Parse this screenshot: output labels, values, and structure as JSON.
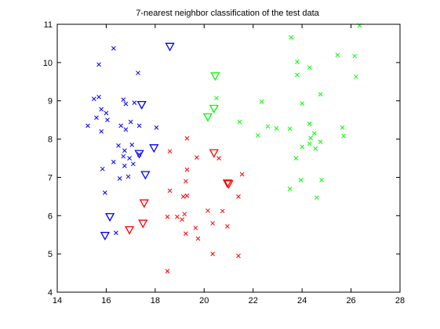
{
  "chart_data": {
    "type": "scatter",
    "title": "7-nearest neighbor classification of the test data",
    "xlabel": "",
    "ylabel": "",
    "xlim": [
      14,
      28
    ],
    "ylim": [
      4,
      11
    ],
    "x_ticks": [
      "14",
      "16",
      "18",
      "20",
      "22",
      "24",
      "26",
      "28"
    ],
    "y_ticks": [
      "4",
      "5",
      "6",
      "7",
      "8",
      "9",
      "10",
      "11"
    ],
    "grid": false,
    "legend": null,
    "series": [
      {
        "color": "#0000ff",
        "marker": "x",
        "points": [
          [
            15.7,
            9.95
          ],
          [
            16.3,
            10.37
          ],
          [
            17.3,
            9.73
          ],
          [
            15.5,
            9.05
          ],
          [
            15.7,
            9.1
          ],
          [
            16.7,
            9.03
          ],
          [
            16.8,
            8.92
          ],
          [
            17.15,
            8.95
          ],
          [
            15.8,
            8.78
          ],
          [
            16.0,
            8.68
          ],
          [
            15.6,
            8.56
          ],
          [
            16.05,
            8.5
          ],
          [
            15.25,
            8.35
          ],
          [
            15.8,
            8.2
          ],
          [
            16.6,
            8.35
          ],
          [
            16.8,
            8.25
          ],
          [
            17.0,
            8.45
          ],
          [
            17.35,
            8.35
          ],
          [
            18.05,
            8.3
          ],
          [
            16.5,
            7.83
          ],
          [
            16.75,
            7.7
          ],
          [
            17.05,
            7.85
          ],
          [
            16.7,
            7.55
          ],
          [
            16.95,
            7.5
          ],
          [
            17.35,
            7.6
          ],
          [
            16.3,
            7.4
          ],
          [
            16.75,
            7.3
          ],
          [
            17.1,
            7.35
          ],
          [
            15.85,
            7.22
          ],
          [
            16.55,
            6.97
          ],
          [
            16.9,
            7.02
          ],
          [
            15.95,
            6.6
          ],
          [
            16.4,
            5.55
          ]
        ]
      },
      {
        "color": "#ff0000",
        "marker": "x",
        "points": [
          [
            19.3,
            8.02
          ],
          [
            18.6,
            7.68
          ],
          [
            19.7,
            7.52
          ],
          [
            20.6,
            7.5
          ],
          [
            19.3,
            7.2
          ],
          [
            21.55,
            7.08
          ],
          [
            19.25,
            6.9
          ],
          [
            18.6,
            6.65
          ],
          [
            19.15,
            6.5
          ],
          [
            19.3,
            6.52
          ],
          [
            21.4,
            6.5
          ],
          [
            20.15,
            6.13
          ],
          [
            20.75,
            6.12
          ],
          [
            18.5,
            5.97
          ],
          [
            18.9,
            5.97
          ],
          [
            19.2,
            6.04
          ],
          [
            19.1,
            5.9
          ],
          [
            20.35,
            5.8
          ],
          [
            20.95,
            5.72
          ],
          [
            19.65,
            5.68
          ],
          [
            19.25,
            5.53
          ],
          [
            19.75,
            5.4
          ],
          [
            20.35,
            5.0
          ],
          [
            21.4,
            4.95
          ],
          [
            18.5,
            4.55
          ]
        ]
      },
      {
        "color": "#00ff00",
        "marker": "x",
        "points": [
          [
            23.55,
            10.66
          ],
          [
            26.35,
            10.97
          ],
          [
            25.45,
            10.2
          ],
          [
            26.15,
            10.17
          ],
          [
            23.8,
            10.02
          ],
          [
            24.3,
            9.87
          ],
          [
            23.8,
            9.68
          ],
          [
            26.2,
            9.63
          ],
          [
            20.5,
            9.07
          ],
          [
            22.35,
            8.98
          ],
          [
            24.0,
            8.93
          ],
          [
            24.75,
            9.17
          ],
          [
            21.45,
            8.45
          ],
          [
            22.6,
            8.33
          ],
          [
            22.95,
            8.28
          ],
          [
            23.5,
            8.27
          ],
          [
            24.3,
            8.4
          ],
          [
            25.65,
            8.3
          ],
          [
            22.2,
            8.1
          ],
          [
            24.5,
            8.15
          ],
          [
            24.35,
            8.03
          ],
          [
            25.7,
            8.08
          ],
          [
            24.3,
            7.88
          ],
          [
            24.75,
            7.93
          ],
          [
            24.0,
            7.8
          ],
          [
            24.55,
            7.75
          ],
          [
            23.75,
            7.5
          ],
          [
            23.95,
            6.93
          ],
          [
            24.8,
            6.93
          ],
          [
            23.5,
            6.7
          ],
          [
            24.6,
            6.47
          ]
        ]
      },
      {
        "color": "#0000ff",
        "marker": "triangle-down",
        "points": [
          [
            18.6,
            10.42
          ],
          [
            17.45,
            8.9
          ],
          [
            17.95,
            7.77
          ],
          [
            17.35,
            7.62
          ],
          [
            17.6,
            7.07
          ],
          [
            16.15,
            5.97
          ],
          [
            15.95,
            5.48
          ]
        ]
      },
      {
        "color": "#ff0000",
        "marker": "triangle-down",
        "points": [
          [
            20.4,
            7.64
          ],
          [
            20.95,
            6.85
          ],
          [
            21.0,
            6.83
          ],
          [
            17.55,
            6.33
          ],
          [
            17.5,
            5.8
          ],
          [
            16.95,
            5.63
          ]
        ]
      },
      {
        "color": "#00ff00",
        "marker": "triangle-down",
        "points": [
          [
            20.45,
            9.65
          ],
          [
            20.4,
            8.8
          ],
          [
            20.15,
            8.58
          ]
        ]
      }
    ]
  }
}
